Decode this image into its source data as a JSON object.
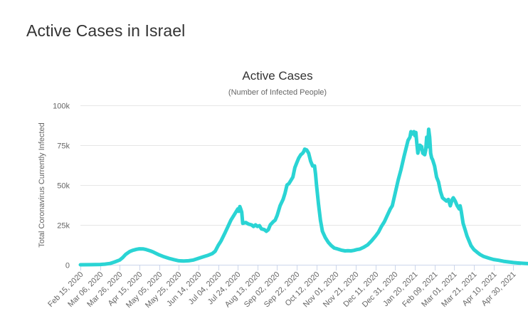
{
  "page": {
    "heading": "Active Cases in Israel"
  },
  "chart_data": {
    "type": "line",
    "title": "Active Cases",
    "subtitle": "(Number of Infected People)",
    "xlabel": "",
    "ylabel": "Total Coronavirus Currently Infected",
    "ylim": [
      0,
      100000
    ],
    "grid": true,
    "legend": "none",
    "line_color": "#2ad4d4",
    "y_ticks": [
      {
        "value": 0,
        "label": "0"
      },
      {
        "value": 25000,
        "label": "25k"
      },
      {
        "value": 50000,
        "label": "50k"
      },
      {
        "value": 75000,
        "label": "75k"
      },
      {
        "value": 100000,
        "label": "100k"
      }
    ],
    "x_tick_labels": [
      {
        "day": 0,
        "label": "Feb 15, 2020"
      },
      {
        "day": 20,
        "label": "Mar 06, 2020"
      },
      {
        "day": 40,
        "label": "Mar 26, 2020"
      },
      {
        "day": 60,
        "label": "Apr 15, 2020"
      },
      {
        "day": 80,
        "label": "May 05, 2020"
      },
      {
        "day": 100,
        "label": "May 25, 2020"
      },
      {
        "day": 120,
        "label": "Jun 14, 2020"
      },
      {
        "day": 140,
        "label": "Jul 04, 2020"
      },
      {
        "day": 160,
        "label": "Jul 24, 2020"
      },
      {
        "day": 180,
        "label": "Aug 13, 2020"
      },
      {
        "day": 200,
        "label": "Sep 02, 2020"
      },
      {
        "day": 220,
        "label": "Sep 22, 2020"
      },
      {
        "day": 240,
        "label": "Oct 12, 2020"
      },
      {
        "day": 260,
        "label": "Nov 01, 2020"
      },
      {
        "day": 280,
        "label": "Nov 21, 2020"
      },
      {
        "day": 300,
        "label": "Dec 11, 2020"
      },
      {
        "day": 320,
        "label": "Dec 31, 2020"
      },
      {
        "day": 340,
        "label": "Jan 20, 2021"
      },
      {
        "day": 360,
        "label": "Feb 09, 2021"
      },
      {
        "day": 380,
        "label": "Mar 01, 2021"
      },
      {
        "day": 400,
        "label": "Mar 21, 2021"
      },
      {
        "day": 420,
        "label": "Apr 10, 2021"
      },
      {
        "day": 440,
        "label": "Apr 30, 2021"
      }
    ],
    "x_range_days": [
      0,
      461
    ],
    "x_unit": "days since Feb 15, 2020",
    "points": [
      [
        0,
        0
      ],
      [
        10,
        50
      ],
      [
        20,
        200
      ],
      [
        25,
        400
      ],
      [
        30,
        800
      ],
      [
        35,
        1800
      ],
      [
        40,
        3000
      ],
      [
        43,
        4500
      ],
      [
        46,
        6500
      ],
      [
        50,
        8200
      ],
      [
        53,
        9000
      ],
      [
        57,
        9700
      ],
      [
        60,
        10000
      ],
      [
        64,
        9900
      ],
      [
        67,
        9500
      ],
      [
        71,
        8700
      ],
      [
        74,
        8000
      ],
      [
        80,
        6200
      ],
      [
        85,
        5000
      ],
      [
        90,
        4000
      ],
      [
        95,
        3200
      ],
      [
        100,
        2500
      ],
      [
        105,
        2300
      ],
      [
        110,
        2500
      ],
      [
        115,
        3000
      ],
      [
        120,
        4000
      ],
      [
        125,
        5000
      ],
      [
        130,
        6000
      ],
      [
        134,
        7000
      ],
      [
        137,
        8500
      ],
      [
        140,
        12000
      ],
      [
        143,
        15000
      ],
      [
        147,
        20000
      ],
      [
        150,
        24000
      ],
      [
        153,
        28000
      ],
      [
        156,
        31000
      ],
      [
        158,
        33000
      ],
      [
        160,
        35000
      ],
      [
        161,
        33500
      ],
      [
        162,
        36500
      ],
      [
        163,
        35000
      ],
      [
        164,
        33000
      ],
      [
        165,
        26000
      ],
      [
        168,
        26500
      ],
      [
        171,
        25500
      ],
      [
        174,
        25000
      ],
      [
        176,
        24000
      ],
      [
        178,
        25000
      ],
      [
        180,
        24000
      ],
      [
        182,
        24500
      ],
      [
        184,
        22500
      ],
      [
        187,
        22000
      ],
      [
        189,
        21000
      ],
      [
        191,
        22000
      ],
      [
        193,
        25000
      ],
      [
        196,
        27000
      ],
      [
        198,
        28000
      ],
      [
        200,
        31000
      ],
      [
        203,
        37000
      ],
      [
        206,
        41000
      ],
      [
        208,
        45000
      ],
      [
        210,
        50000
      ],
      [
        212,
        51000
      ],
      [
        214,
        53000
      ],
      [
        216,
        55000
      ],
      [
        218,
        61000
      ],
      [
        220,
        64000
      ],
      [
        222,
        67000
      ],
      [
        224,
        69000
      ],
      [
        226,
        70000
      ],
      [
        227,
        71000
      ],
      [
        228,
        72500
      ],
      [
        230,
        72000
      ],
      [
        232,
        70000
      ],
      [
        234,
        65000
      ],
      [
        236,
        62000
      ],
      [
        238,
        62000
      ],
      [
        239,
        57000
      ],
      [
        240,
        50000
      ],
      [
        242,
        38000
      ],
      [
        244,
        28000
      ],
      [
        246,
        21000
      ],
      [
        249,
        17000
      ],
      [
        252,
        14000
      ],
      [
        255,
        12000
      ],
      [
        258,
        10500
      ],
      [
        261,
        10000
      ],
      [
        265,
        9200
      ],
      [
        269,
        8700
      ],
      [
        272,
        8800
      ],
      [
        275,
        8700
      ],
      [
        278,
        9000
      ],
      [
        281,
        9500
      ],
      [
        284,
        9800
      ],
      [
        288,
        11000
      ],
      [
        292,
        12500
      ],
      [
        296,
        15000
      ],
      [
        300,
        18000
      ],
      [
        303,
        20500
      ],
      [
        306,
        24000
      ],
      [
        309,
        27000
      ],
      [
        312,
        31000
      ],
      [
        315,
        35000
      ],
      [
        317,
        37000
      ],
      [
        320,
        45000
      ],
      [
        323,
        53000
      ],
      [
        326,
        60000
      ],
      [
        329,
        68000
      ],
      [
        331,
        73000
      ],
      [
        333,
        78000
      ],
      [
        335,
        80000
      ],
      [
        336,
        83500
      ],
      [
        337,
        82000
      ],
      [
        339,
        83500
      ],
      [
        340,
        81000
      ],
      [
        341,
        83000
      ],
      [
        342,
        76000
      ],
      [
        343,
        70000
      ],
      [
        345,
        75000
      ],
      [
        347,
        74000
      ],
      [
        348,
        70000
      ],
      [
        350,
        69000
      ],
      [
        351,
        72000
      ],
      [
        352,
        80000
      ],
      [
        353,
        74000
      ],
      [
        354,
        85000
      ],
      [
        355,
        80000
      ],
      [
        356,
        70000
      ],
      [
        357,
        67000
      ],
      [
        358,
        66000
      ],
      [
        360,
        62000
      ],
      [
        362,
        55000
      ],
      [
        364,
        52000
      ],
      [
        366,
        46000
      ],
      [
        368,
        42000
      ],
      [
        370,
        41000
      ],
      [
        372,
        40000
      ],
      [
        374,
        41000
      ],
      [
        375,
        39000
      ],
      [
        376,
        37000
      ],
      [
        378,
        41000
      ],
      [
        379,
        42000
      ],
      [
        381,
        40000
      ],
      [
        383,
        37000
      ],
      [
        385,
        35000
      ],
      [
        386,
        37000
      ],
      [
        387,
        34000
      ],
      [
        389,
        26000
      ],
      [
        391,
        22000
      ],
      [
        393,
        18000
      ],
      [
        395,
        15000
      ],
      [
        397,
        12000
      ],
      [
        400,
        9500
      ],
      [
        403,
        8000
      ],
      [
        406,
        6500
      ],
      [
        410,
        5200
      ],
      [
        415,
        4200
      ],
      [
        420,
        3300
      ],
      [
        425,
        2800
      ],
      [
        430,
        2200
      ],
      [
        435,
        1800
      ],
      [
        440,
        1400
      ],
      [
        445,
        1100
      ],
      [
        450,
        900
      ],
      [
        455,
        700
      ],
      [
        461,
        600
      ]
    ]
  }
}
